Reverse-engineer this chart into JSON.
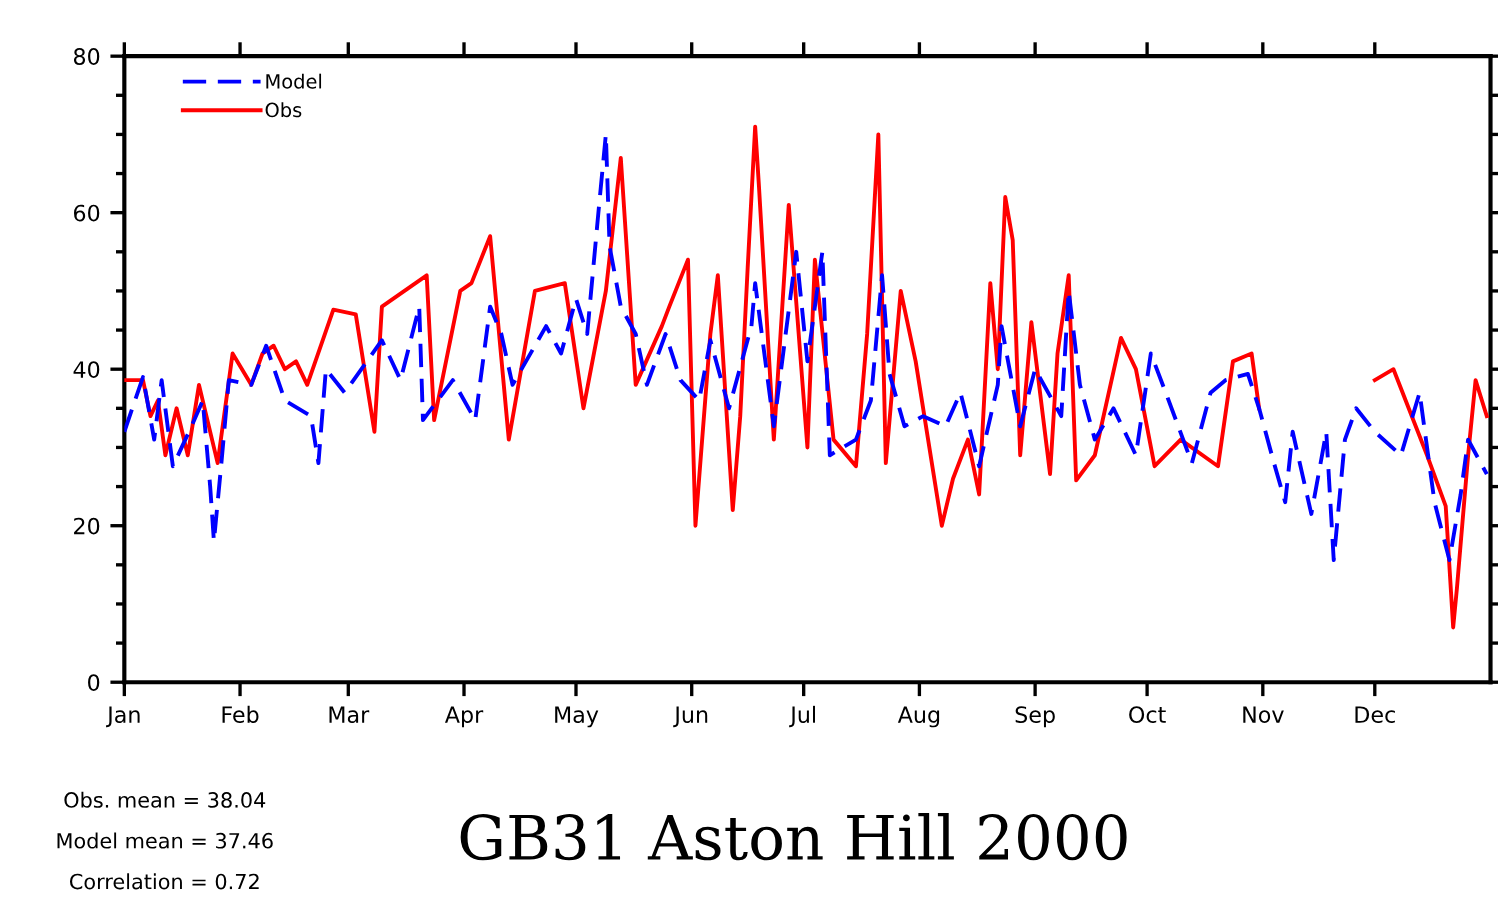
{
  "chart_data": {
    "type": "line",
    "title": "GB31 Aston Hill 2000",
    "annotations": [
      "Obs. mean = 38.04",
      "Model mean = 37.46",
      "Correlation = 0.72"
    ],
    "xlim": [
      "2000-01-01",
      "2001-01-01"
    ],
    "xticks": [
      {
        "value": "2000-01-01",
        "label": "Jan"
      },
      {
        "value": "2000-02-01",
        "label": "Feb"
      },
      {
        "value": "2000-03-01",
        "label": "Mar"
      },
      {
        "value": "2000-04-01",
        "label": "Apr"
      },
      {
        "value": "2000-05-01",
        "label": "May"
      },
      {
        "value": "2000-06-01",
        "label": "Jun"
      },
      {
        "value": "2000-07-01",
        "label": "Jul"
      },
      {
        "value": "2000-08-01",
        "label": "Aug"
      },
      {
        "value": "2000-09-01",
        "label": "Sep"
      },
      {
        "value": "2000-10-01",
        "label": "Oct"
      },
      {
        "value": "2000-11-01",
        "label": "Nov"
      },
      {
        "value": "2000-12-01",
        "label": "Dec"
      }
    ],
    "ylim": [
      0,
      80
    ],
    "yticks": [
      0,
      {
        "value": 5,
        "label": null
      },
      {
        "value": 10,
        "label": null
      },
      {
        "value": 15,
        "label": null
      },
      20,
      {
        "value": 25,
        "label": null
      },
      {
        "value": 30,
        "label": null
      },
      {
        "value": 35,
        "label": null
      },
      40,
      {
        "value": 45,
        "label": null
      },
      {
        "value": 50,
        "label": null
      },
      {
        "value": 55,
        "label": null
      },
      60,
      {
        "value": 65,
        "label": null
      },
      {
        "value": 70,
        "label": null
      },
      {
        "value": 75,
        "label": null
      },
      80
    ],
    "grid": false,
    "legend": "top left",
    "marker": "none",
    "series": [
      {
        "name": "Model",
        "color": "#0000ff",
        "line_style": "dashed",
        "x": [
          "2000-01-01",
          "2000-01-06",
          "2000-01-09",
          "2000-01-11",
          "2000-01-14",
          "2000-01-19",
          "2000-01-22",
          "2000-01-24",
          "2000-01-25",
          "2000-01-27",
          "2000-01-29",
          "2000-02-04",
          "2000-02-08",
          "2000-02-13",
          "2000-02-20",
          "2000-02-22",
          "2000-02-24",
          "2000-02-29",
          "2000-03-10",
          "2000-03-15",
          "2000-03-20",
          "2000-03-21",
          "2000-03-29",
          "2000-04-04",
          "2000-04-08",
          "2000-04-11",
          "2000-04-14",
          "2000-04-23",
          "2000-04-27",
          "2000-05-01",
          "2000-05-04",
          "2000-05-07",
          "2000-05-09",
          "2000-05-10",
          "2000-05-13",
          "2000-05-17",
          "2000-05-20",
          "2000-05-25",
          "2000-05-29",
          "2000-06-03",
          "2000-06-06",
          "2000-06-11",
          "2000-06-17",
          "2000-06-18",
          "2000-06-23",
          "2000-06-29",
          "2000-07-02",
          "2000-07-06",
          "2000-07-08",
          "2000-07-15",
          "2000-07-19",
          "2000-07-22",
          "2000-07-24",
          "2000-07-28",
          "2000-08-02",
          "2000-08-08",
          "2000-08-12",
          "2000-08-17",
          "2000-08-22",
          "2000-08-23",
          "2000-08-28",
          "2000-09-01",
          "2000-09-08",
          "2000-09-10",
          "2000-09-13",
          "2000-09-17",
          "2000-09-22",
          "2000-09-28",
          "2000-10-02",
          "2000-10-06",
          "2000-10-13",
          "2000-10-18",
          "2000-10-22",
          "2000-10-28",
          "2000-10-31",
          "2000-11-04",
          "2000-11-07",
          "2000-11-09",
          "2000-11-14",
          "2000-11-18",
          "2000-11-20",
          "2000-11-23",
          "2000-11-26",
          "2000-12-01",
          "2000-12-08",
          "2000-12-13",
          "2000-12-17",
          "2000-12-21",
          "2000-12-24",
          "2000-12-26",
          "2000-12-31"
        ],
        "values": [
          32,
          39,
          31,
          38.6,
          27.6,
          32.7,
          36,
          25,
          18,
          28,
          38.6,
          38,
          43,
          36,
          34,
          28,
          40,
          37,
          43.7,
          38.6,
          48,
          33.5,
          38.6,
          33.5,
          48,
          44.5,
          38,
          45.5,
          42,
          49,
          44.5,
          60,
          70,
          55.7,
          48,
          44.5,
          38,
          44.5,
          38.6,
          36,
          43.7,
          35,
          45.5,
          51,
          32.7,
          55,
          41,
          55,
          29,
          31,
          36,
          52,
          39.4,
          32.7,
          34,
          32.7,
          37,
          27.6,
          38,
          45.5,
          32.7,
          40,
          34,
          50,
          38,
          31,
          35,
          29,
          42,
          37,
          28,
          37,
          38.6,
          39.4,
          35,
          28,
          23,
          32,
          21.5,
          32,
          15.6,
          31,
          35,
          32,
          29,
          37,
          23,
          15.6,
          24,
          31,
          26.6
        ]
      },
      {
        "name": "Obs",
        "color": "#ff0000",
        "line_style": "solid",
        "x": [
          "2000-01-01",
          "2000-01-06",
          "2000-01-08",
          "2000-01-10",
          "2000-01-12",
          "2000-01-15",
          "2000-01-18",
          "2000-01-21",
          "2000-01-26",
          "2000-01-30",
          "2000-02-04",
          "2000-02-07",
          "2000-02-10",
          "2000-02-13",
          "2000-02-16",
          "2000-02-19",
          "2000-02-26",
          "2000-03-03",
          "2000-03-08",
          "2000-03-10",
          "2000-03-22",
          "2000-03-24",
          "2000-03-31",
          "2000-04-03",
          "2000-04-08",
          "2000-04-13",
          "2000-04-20",
          "2000-04-28",
          "2000-05-03",
          "2000-05-09",
          "2000-05-13",
          "2000-05-17",
          "2000-05-24",
          "2000-05-26",
          "2000-05-31",
          "2000-06-02",
          "2000-06-06",
          "2000-06-08",
          "2000-06-12",
          "2000-06-14",
          "2000-06-16",
          "2000-06-18",
          "2000-06-19",
          "2000-06-23",
          "2000-06-27",
          "2000-07-02",
          "2000-07-04",
          "2000-07-09",
          "2000-07-15",
          "2000-07-18",
          "2000-07-21",
          "2000-07-23",
          "2000-07-27",
          "2000-07-31",
          "2000-08-07",
          "2000-08-10",
          "2000-08-14",
          "2000-08-17",
          "2000-08-20",
          "2000-08-22",
          "2000-08-24",
          "2000-08-26",
          "2000-08-28",
          "2000-08-31",
          "2000-09-05",
          "2000-09-07",
          "2000-09-10",
          "2000-09-12",
          "2000-09-17",
          "2000-09-24",
          "2000-09-28",
          "2000-10-03",
          "2000-10-10",
          "2000-10-20",
          "2000-10-24",
          "2000-10-29",
          "2000-10-31",
          "2000-11-01",
          "2000-12-01",
          "2000-12-06",
          "2000-12-15",
          "2000-12-20",
          "2000-12-22",
          "2000-12-23",
          "2000-12-26",
          "2000-12-28",
          "2000-12-31"
        ],
        "values": [
          38.6,
          38.6,
          34,
          36,
          29,
          35,
          29,
          38,
          28,
          42,
          38,
          42,
          43,
          40,
          41,
          38,
          47.6,
          47,
          32,
          48,
          52,
          33.5,
          50,
          51,
          57,
          31,
          50,
          51,
          35,
          50,
          67,
          38,
          45.5,
          48,
          54,
          20,
          44.5,
          52,
          22,
          34,
          53,
          71,
          63.5,
          31,
          61,
          30,
          54,
          31,
          27.6,
          44.5,
          70,
          28,
          50,
          41,
          20,
          26,
          31,
          24,
          51,
          40,
          62,
          56.5,
          29,
          46,
          26.6,
          42,
          52,
          25.8,
          29,
          44,
          40,
          27.6,
          31,
          27.6,
          41,
          42,
          35,
          null,
          38.6,
          40,
          29,
          22.5,
          7,
          12,
          29,
          38.6,
          34
        ]
      }
    ]
  }
}
